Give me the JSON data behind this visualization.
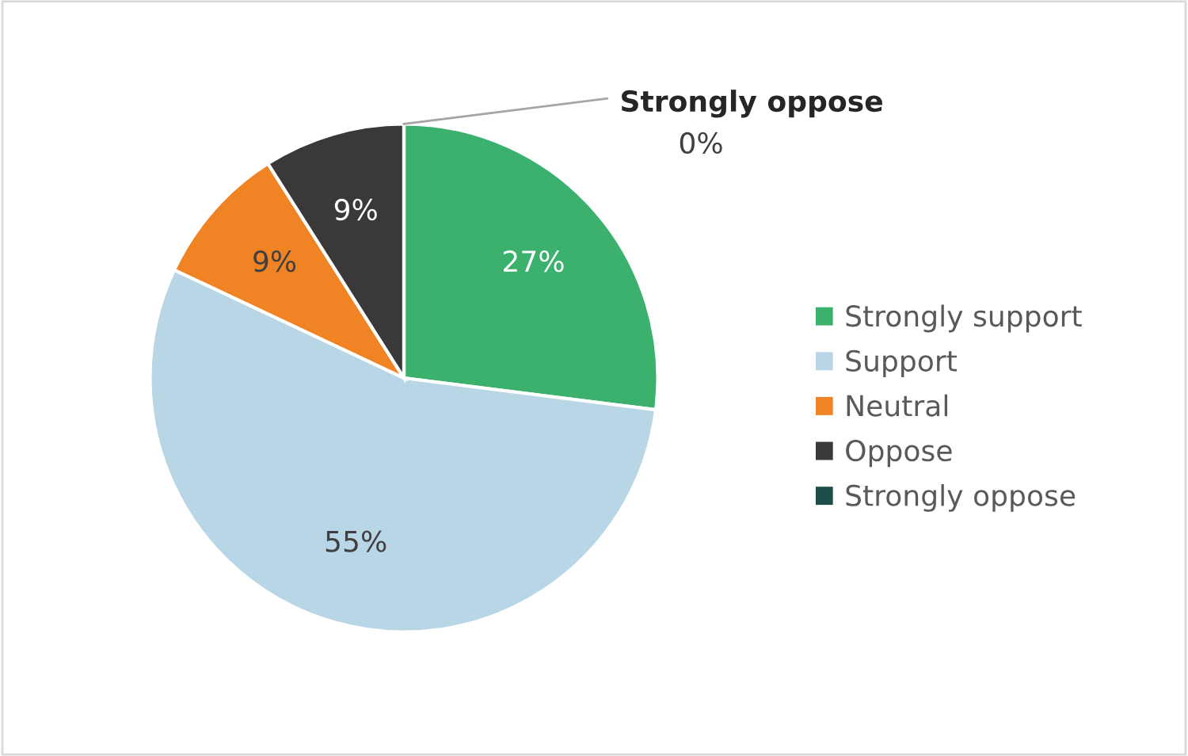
{
  "chart_data": {
    "type": "pie",
    "categories": [
      "Strongly support",
      "Support",
      "Neutral",
      "Oppose",
      "Strongly oppose"
    ],
    "values": [
      27,
      55,
      9,
      9,
      0
    ],
    "colors": [
      "#3bb16d",
      "#b8d6e6",
      "#f08323",
      "#3a3838",
      "#1e4e4a"
    ],
    "value_labels": [
      "27%",
      "55%",
      "9%",
      "9%",
      "0%"
    ],
    "legend": "right"
  }
}
